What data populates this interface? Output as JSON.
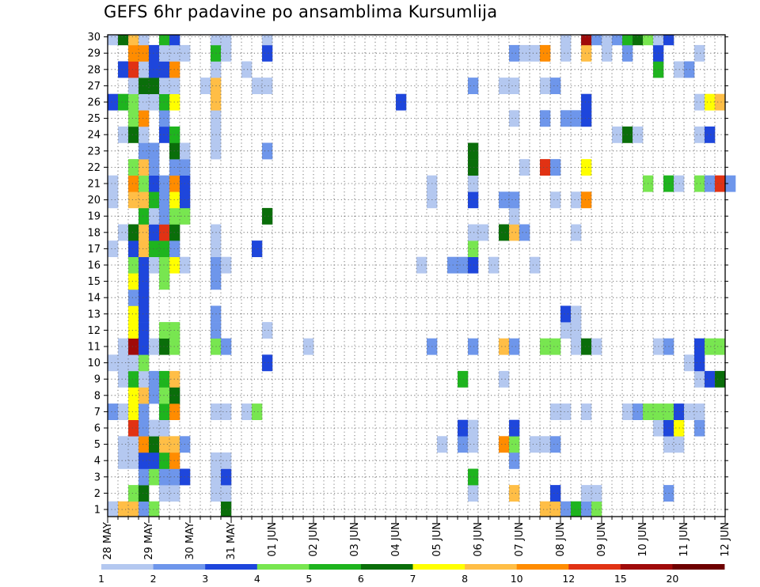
{
  "chart_data": {
    "type": "heatmap",
    "title": "GEFS 6hr padavine po ansamblima Kursumlija",
    "x_ticks": [
      "28 MAY",
      "29 MAY",
      "30 MAY",
      "31 MAY",
      "01 JUN",
      "02 JUN",
      "03 JUN",
      "04 JUN",
      "05 JUN",
      "06 JUN",
      "07 JUN",
      "08 JUN",
      "09 JUN",
      "10 JUN",
      "11 JUN",
      "12 JUN"
    ],
    "x_step_hours": 6,
    "y_members": [
      1,
      2,
      3,
      4,
      5,
      6,
      7,
      8,
      9,
      10,
      11,
      12,
      13,
      14,
      15,
      16,
      17,
      18,
      19,
      20,
      21,
      22,
      23,
      24,
      25,
      26,
      27,
      28,
      29,
      30
    ],
    "colorbar": {
      "labels": [
        "1",
        "2",
        "3",
        "4",
        "5",
        "6",
        "7",
        "8",
        "10",
        "12",
        "15",
        "20"
      ],
      "colors": [
        "#b4c8f0",
        "#6e96eb",
        "#1e46dc",
        "#78e650",
        "#1eb41e",
        "#0a6e0a",
        "#ffff00",
        "#ffbe46",
        "#ff8c00",
        "#e13214",
        "#a00a0a",
        "#6e0000"
      ]
    },
    "cells": [
      [
        0,
        0,
        1
      ],
      [
        1,
        0,
        8
      ],
      [
        2,
        0,
        8
      ],
      [
        3,
        0,
        2
      ],
      [
        4,
        0,
        4
      ],
      [
        11,
        0,
        6
      ],
      [
        42,
        0,
        8
      ],
      [
        43,
        0,
        8
      ],
      [
        44,
        0,
        2
      ],
      [
        45,
        0,
        5
      ],
      [
        46,
        0,
        2
      ],
      [
        47,
        0,
        4
      ],
      [
        2,
        1,
        4
      ],
      [
        3,
        1,
        6
      ],
      [
        5,
        1,
        1
      ],
      [
        6,
        1,
        1
      ],
      [
        10,
        1,
        1
      ],
      [
        11,
        1,
        1
      ],
      [
        35,
        1,
        1
      ],
      [
        39,
        1,
        8
      ],
      [
        43,
        1,
        3
      ],
      [
        46,
        1,
        1
      ],
      [
        47,
        1,
        1
      ],
      [
        54,
        1,
        2
      ],
      [
        3,
        2,
        2
      ],
      [
        4,
        2,
        4
      ],
      [
        5,
        2,
        2
      ],
      [
        6,
        2,
        2
      ],
      [
        7,
        2,
        3
      ],
      [
        10,
        2,
        1
      ],
      [
        11,
        2,
        3
      ],
      [
        35,
        2,
        5
      ],
      [
        1,
        3,
        1
      ],
      [
        2,
        3,
        1
      ],
      [
        3,
        3,
        3
      ],
      [
        4,
        3,
        3
      ],
      [
        5,
        3,
        5
      ],
      [
        6,
        3,
        9
      ],
      [
        10,
        3,
        1
      ],
      [
        11,
        3,
        1
      ],
      [
        39,
        3,
        2
      ],
      [
        1,
        4,
        1
      ],
      [
        2,
        4,
        1
      ],
      [
        3,
        4,
        9
      ],
      [
        4,
        4,
        6
      ],
      [
        5,
        4,
        8
      ],
      [
        6,
        4,
        8
      ],
      [
        7,
        4,
        2
      ],
      [
        32,
        4,
        1
      ],
      [
        34,
        4,
        2
      ],
      [
        35,
        4,
        1
      ],
      [
        38,
        4,
        9
      ],
      [
        39,
        4,
        4
      ],
      [
        41,
        4,
        1
      ],
      [
        42,
        4,
        1
      ],
      [
        43,
        4,
        2
      ],
      [
        54,
        4,
        1
      ],
      [
        55,
        4,
        1
      ],
      [
        2,
        5,
        10
      ],
      [
        3,
        5,
        2
      ],
      [
        4,
        5,
        1
      ],
      [
        5,
        5,
        1
      ],
      [
        34,
        5,
        3
      ],
      [
        35,
        5,
        1
      ],
      [
        39,
        5,
        3
      ],
      [
        53,
        5,
        1
      ],
      [
        54,
        5,
        3
      ],
      [
        55,
        5,
        7
      ],
      [
        57,
        5,
        2
      ],
      [
        0,
        6,
        2
      ],
      [
        1,
        6,
        1
      ],
      [
        2,
        6,
        7
      ],
      [
        3,
        6,
        2
      ],
      [
        5,
        6,
        5
      ],
      [
        6,
        6,
        9
      ],
      [
        10,
        6,
        1
      ],
      [
        11,
        6,
        1
      ],
      [
        13,
        6,
        1
      ],
      [
        14,
        6,
        4
      ],
      [
        43,
        6,
        1
      ],
      [
        44,
        6,
        1
      ],
      [
        46,
        6,
        1
      ],
      [
        50,
        6,
        1
      ],
      [
        51,
        6,
        2
      ],
      [
        52,
        6,
        4
      ],
      [
        53,
        6,
        4
      ],
      [
        54,
        6,
        4
      ],
      [
        55,
        6,
        3
      ],
      [
        56,
        6,
        1
      ],
      [
        57,
        6,
        1
      ],
      [
        2,
        7,
        7
      ],
      [
        3,
        7,
        8
      ],
      [
        4,
        7,
        2
      ],
      [
        5,
        7,
        4
      ],
      [
        6,
        7,
        6
      ],
      [
        1,
        8,
        1
      ],
      [
        2,
        8,
        5
      ],
      [
        3,
        8,
        1
      ],
      [
        4,
        8,
        2
      ],
      [
        5,
        8,
        5
      ],
      [
        6,
        8,
        8
      ],
      [
        34,
        8,
        5
      ],
      [
        38,
        8,
        1
      ],
      [
        57,
        8,
        1
      ],
      [
        58,
        8,
        3
      ],
      [
        59,
        8,
        6
      ],
      [
        0,
        9,
        1
      ],
      [
        1,
        9,
        1
      ],
      [
        2,
        9,
        1
      ],
      [
        3,
        9,
        4
      ],
      [
        15,
        9,
        3
      ],
      [
        56,
        9,
        1
      ],
      [
        57,
        9,
        3
      ],
      [
        1,
        10,
        1
      ],
      [
        2,
        10,
        11
      ],
      [
        3,
        10,
        3
      ],
      [
        4,
        10,
        1
      ],
      [
        5,
        10,
        6
      ],
      [
        6,
        10,
        4
      ],
      [
        10,
        10,
        4
      ],
      [
        11,
        10,
        2
      ],
      [
        19,
        10,
        1
      ],
      [
        31,
        10,
        2
      ],
      [
        35,
        10,
        2
      ],
      [
        38,
        10,
        8
      ],
      [
        39,
        10,
        2
      ],
      [
        42,
        10,
        4
      ],
      [
        43,
        10,
        4
      ],
      [
        45,
        10,
        1
      ],
      [
        46,
        10,
        6
      ],
      [
        47,
        10,
        1
      ],
      [
        53,
        10,
        1
      ],
      [
        54,
        10,
        2
      ],
      [
        57,
        10,
        3
      ],
      [
        58,
        10,
        4
      ],
      [
        59,
        10,
        4
      ],
      [
        2,
        11,
        7
      ],
      [
        3,
        11,
        3
      ],
      [
        5,
        11,
        4
      ],
      [
        6,
        11,
        4
      ],
      [
        10,
        11,
        2
      ],
      [
        15,
        11,
        1
      ],
      [
        44,
        11,
        1
      ],
      [
        45,
        11,
        1
      ],
      [
        2,
        12,
        7
      ],
      [
        3,
        12,
        3
      ],
      [
        10,
        12,
        2
      ],
      [
        44,
        12,
        3
      ],
      [
        45,
        12,
        1
      ],
      [
        2,
        13,
        2
      ],
      [
        3,
        13,
        3
      ],
      [
        2,
        14,
        7
      ],
      [
        3,
        14,
        3
      ],
      [
        5,
        14,
        4
      ],
      [
        10,
        14,
        2
      ],
      [
        2,
        15,
        4
      ],
      [
        3,
        15,
        3
      ],
      [
        4,
        15,
        1
      ],
      [
        5,
        15,
        4
      ],
      [
        6,
        15,
        7
      ],
      [
        7,
        15,
        1
      ],
      [
        10,
        15,
        2
      ],
      [
        11,
        15,
        1
      ],
      [
        30,
        15,
        1
      ],
      [
        33,
        15,
        2
      ],
      [
        34,
        15,
        2
      ],
      [
        35,
        15,
        3
      ],
      [
        37,
        15,
        1
      ],
      [
        41,
        15,
        1
      ],
      [
        0,
        16,
        1
      ],
      [
        2,
        16,
        3
      ],
      [
        3,
        16,
        8
      ],
      [
        4,
        16,
        5
      ],
      [
        5,
        16,
        5
      ],
      [
        6,
        16,
        2
      ],
      [
        10,
        16,
        1
      ],
      [
        14,
        16,
        3
      ],
      [
        35,
        16,
        4
      ],
      [
        1,
        17,
        1
      ],
      [
        2,
        17,
        6
      ],
      [
        3,
        17,
        8
      ],
      [
        4,
        17,
        3
      ],
      [
        5,
        17,
        10
      ],
      [
        6,
        17,
        6
      ],
      [
        10,
        17,
        1
      ],
      [
        35,
        17,
        1
      ],
      [
        36,
        17,
        1
      ],
      [
        38,
        17,
        6
      ],
      [
        39,
        17,
        8
      ],
      [
        40,
        17,
        2
      ],
      [
        45,
        17,
        1
      ],
      [
        3,
        18,
        5
      ],
      [
        4,
        18,
        1
      ],
      [
        5,
        18,
        2
      ],
      [
        6,
        18,
        4
      ],
      [
        7,
        18,
        4
      ],
      [
        15,
        18,
        6
      ],
      [
        39,
        18,
        1
      ],
      [
        0,
        19,
        1
      ],
      [
        2,
        19,
        8
      ],
      [
        3,
        19,
        8
      ],
      [
        4,
        19,
        5
      ],
      [
        5,
        19,
        2
      ],
      [
        6,
        19,
        7
      ],
      [
        7,
        19,
        3
      ],
      [
        31,
        19,
        1
      ],
      [
        35,
        19,
        3
      ],
      [
        38,
        19,
        2
      ],
      [
        39,
        19,
        2
      ],
      [
        43,
        19,
        1
      ],
      [
        45,
        19,
        1
      ],
      [
        46,
        19,
        9
      ],
      [
        0,
        20,
        1
      ],
      [
        2,
        20,
        9
      ],
      [
        3,
        20,
        4
      ],
      [
        4,
        20,
        3
      ],
      [
        5,
        20,
        2
      ],
      [
        6,
        20,
        9
      ],
      [
        7,
        20,
        3
      ],
      [
        31,
        20,
        1
      ],
      [
        35,
        20,
        1
      ],
      [
        52,
        20,
        4
      ],
      [
        54,
        20,
        5
      ],
      [
        55,
        20,
        1
      ],
      [
        57,
        20,
        4
      ],
      [
        58,
        20,
        2
      ],
      [
        59,
        20,
        10
      ],
      [
        60,
        20,
        2
      ],
      [
        2,
        21,
        4
      ],
      [
        3,
        21,
        8
      ],
      [
        4,
        21,
        2
      ],
      [
        6,
        21,
        2
      ],
      [
        7,
        21,
        2
      ],
      [
        35,
        21,
        6
      ],
      [
        40,
        21,
        1
      ],
      [
        42,
        21,
        10
      ],
      [
        43,
        21,
        2
      ],
      [
        46,
        21,
        7
      ],
      [
        3,
        22,
        2
      ],
      [
        4,
        22,
        2
      ],
      [
        6,
        22,
        6
      ],
      [
        7,
        22,
        1
      ],
      [
        10,
        22,
        1
      ],
      [
        15,
        22,
        2
      ],
      [
        35,
        22,
        6
      ],
      [
        1,
        23,
        1
      ],
      [
        2,
        23,
        6
      ],
      [
        3,
        23,
        1
      ],
      [
        5,
        23,
        3
      ],
      [
        6,
        23,
        5
      ],
      [
        10,
        23,
        1
      ],
      [
        49,
        23,
        1
      ],
      [
        50,
        23,
        6
      ],
      [
        51,
        23,
        1
      ],
      [
        57,
        23,
        1
      ],
      [
        58,
        23,
        3
      ],
      [
        2,
        24,
        4
      ],
      [
        3,
        24,
        9
      ],
      [
        5,
        24,
        2
      ],
      [
        10,
        24,
        1
      ],
      [
        39,
        24,
        1
      ],
      [
        42,
        24,
        2
      ],
      [
        44,
        24,
        2
      ],
      [
        45,
        24,
        2
      ],
      [
        46,
        24,
        3
      ],
      [
        0,
        25,
        3
      ],
      [
        1,
        25,
        5
      ],
      [
        2,
        25,
        4
      ],
      [
        3,
        25,
        1
      ],
      [
        4,
        25,
        1
      ],
      [
        5,
        25,
        5
      ],
      [
        6,
        25,
        7
      ],
      [
        10,
        25,
        8
      ],
      [
        28,
        25,
        3
      ],
      [
        46,
        25,
        3
      ],
      [
        57,
        25,
        1
      ],
      [
        58,
        25,
        7
      ],
      [
        59,
        25,
        8
      ],
      [
        2,
        26,
        1
      ],
      [
        3,
        26,
        6
      ],
      [
        4,
        26,
        6
      ],
      [
        5,
        26,
        1
      ],
      [
        6,
        26,
        1
      ],
      [
        9,
        26,
        1
      ],
      [
        10,
        26,
        8
      ],
      [
        14,
        26,
        1
      ],
      [
        15,
        26,
        1
      ],
      [
        35,
        26,
        2
      ],
      [
        38,
        26,
        1
      ],
      [
        39,
        26,
        1
      ],
      [
        42,
        26,
        1
      ],
      [
        43,
        26,
        2
      ],
      [
        1,
        27,
        3
      ],
      [
        2,
        27,
        10
      ],
      [
        3,
        27,
        1
      ],
      [
        4,
        27,
        3
      ],
      [
        5,
        27,
        3
      ],
      [
        6,
        27,
        9
      ],
      [
        10,
        27,
        1
      ],
      [
        13,
        27,
        1
      ],
      [
        53,
        27,
        5
      ],
      [
        55,
        27,
        1
      ],
      [
        56,
        27,
        2
      ],
      [
        2,
        28,
        9
      ],
      [
        3,
        28,
        9
      ],
      [
        4,
        28,
        3
      ],
      [
        5,
        28,
        1
      ],
      [
        6,
        28,
        1
      ],
      [
        7,
        28,
        1
      ],
      [
        10,
        28,
        5
      ],
      [
        11,
        28,
        1
      ],
      [
        15,
        28,
        3
      ],
      [
        39,
        28,
        2
      ],
      [
        40,
        28,
        1
      ],
      [
        41,
        28,
        1
      ],
      [
        42,
        28,
        9
      ],
      [
        44,
        28,
        1
      ],
      [
        46,
        28,
        8
      ],
      [
        48,
        28,
        1
      ],
      [
        50,
        28,
        2
      ],
      [
        53,
        28,
        3
      ],
      [
        57,
        28,
        1
      ],
      [
        0,
        29,
        1
      ],
      [
        1,
        29,
        6
      ],
      [
        2,
        29,
        8
      ],
      [
        3,
        29,
        1
      ],
      [
        5,
        29,
        5
      ],
      [
        6,
        29,
        3
      ],
      [
        10,
        29,
        1
      ],
      [
        11,
        29,
        1
      ],
      [
        15,
        29,
        1
      ],
      [
        44,
        29,
        1
      ],
      [
        46,
        29,
        11
      ],
      [
        47,
        29,
        2
      ],
      [
        48,
        29,
        1
      ],
      [
        49,
        29,
        2
      ],
      [
        50,
        29,
        5
      ],
      [
        51,
        29,
        6
      ],
      [
        52,
        29,
        4
      ],
      [
        53,
        29,
        1
      ],
      [
        54,
        29,
        3
      ],
      [
        1,
        30,
        2
      ],
      [
        2,
        30,
        7
      ],
      [
        3,
        30,
        1
      ],
      [
        5,
        30,
        5
      ],
      [
        6,
        30,
        11
      ],
      [
        7,
        30,
        1
      ],
      [
        9,
        30,
        1
      ],
      [
        10,
        30,
        1
      ],
      [
        11,
        30,
        2
      ],
      [
        34,
        30,
        6
      ],
      [
        35,
        30,
        10
      ],
      [
        43,
        30,
        1
      ],
      [
        44,
        30,
        1
      ],
      [
        45,
        30,
        1
      ],
      [
        46,
        30,
        1
      ],
      [
        50,
        30,
        2
      ],
      [
        57,
        30,
        1
      ],
      [
        59,
        30,
        3
      ]
    ]
  }
}
